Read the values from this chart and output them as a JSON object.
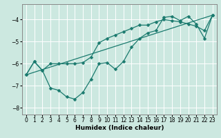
{
  "xlabel": "Humidex (Indice chaleur)",
  "ylabel": "",
  "bg_color": "#cce8e0",
  "line_color": "#1a7a6e",
  "grid_color": "#ffffff",
  "xlim": [
    -0.5,
    23.5
  ],
  "ylim": [
    -8.3,
    -3.3
  ],
  "yticks": [
    -8,
    -7,
    -6,
    -5,
    -4
  ],
  "xticks": [
    0,
    1,
    2,
    3,
    4,
    5,
    6,
    7,
    8,
    9,
    10,
    11,
    12,
    13,
    14,
    15,
    16,
    17,
    18,
    19,
    20,
    21,
    22,
    23
  ],
  "line1_x": [
    0,
    1,
    2,
    3,
    4,
    5,
    6,
    7,
    8,
    9,
    10,
    11,
    12,
    13,
    14,
    15,
    16,
    17,
    18,
    19,
    20,
    21,
    22,
    23
  ],
  "line1_y": [
    -6.5,
    -5.9,
    -6.3,
    -7.1,
    -7.2,
    -7.5,
    -7.6,
    -7.3,
    -6.7,
    -6.0,
    -5.95,
    -6.25,
    -5.9,
    -5.25,
    -4.85,
    -4.6,
    -4.5,
    -3.9,
    -3.85,
    -4.05,
    -3.85,
    -4.2,
    -4.85,
    -3.8
  ],
  "line2_x": [
    0,
    1,
    2,
    3,
    4,
    5,
    6,
    7,
    8,
    9,
    10,
    11,
    12,
    13,
    14,
    15,
    16,
    17,
    18,
    19,
    20,
    21,
    22,
    23
  ],
  "line2_y": [
    -6.5,
    -5.9,
    -6.3,
    -6.0,
    -6.0,
    -6.0,
    -6.0,
    -5.95,
    -5.7,
    -5.05,
    -4.85,
    -4.7,
    -4.55,
    -4.4,
    -4.25,
    -4.25,
    -4.1,
    -4.0,
    -4.05,
    -4.1,
    -4.2,
    -4.3,
    -4.5,
    -3.8
  ],
  "line3_x": [
    0,
    23
  ],
  "line3_y": [
    -6.5,
    -3.8
  ],
  "marker_size": 2.5,
  "linewidth": 0.9,
  "tick_fontsize": 5.5,
  "xlabel_fontsize": 6.5
}
